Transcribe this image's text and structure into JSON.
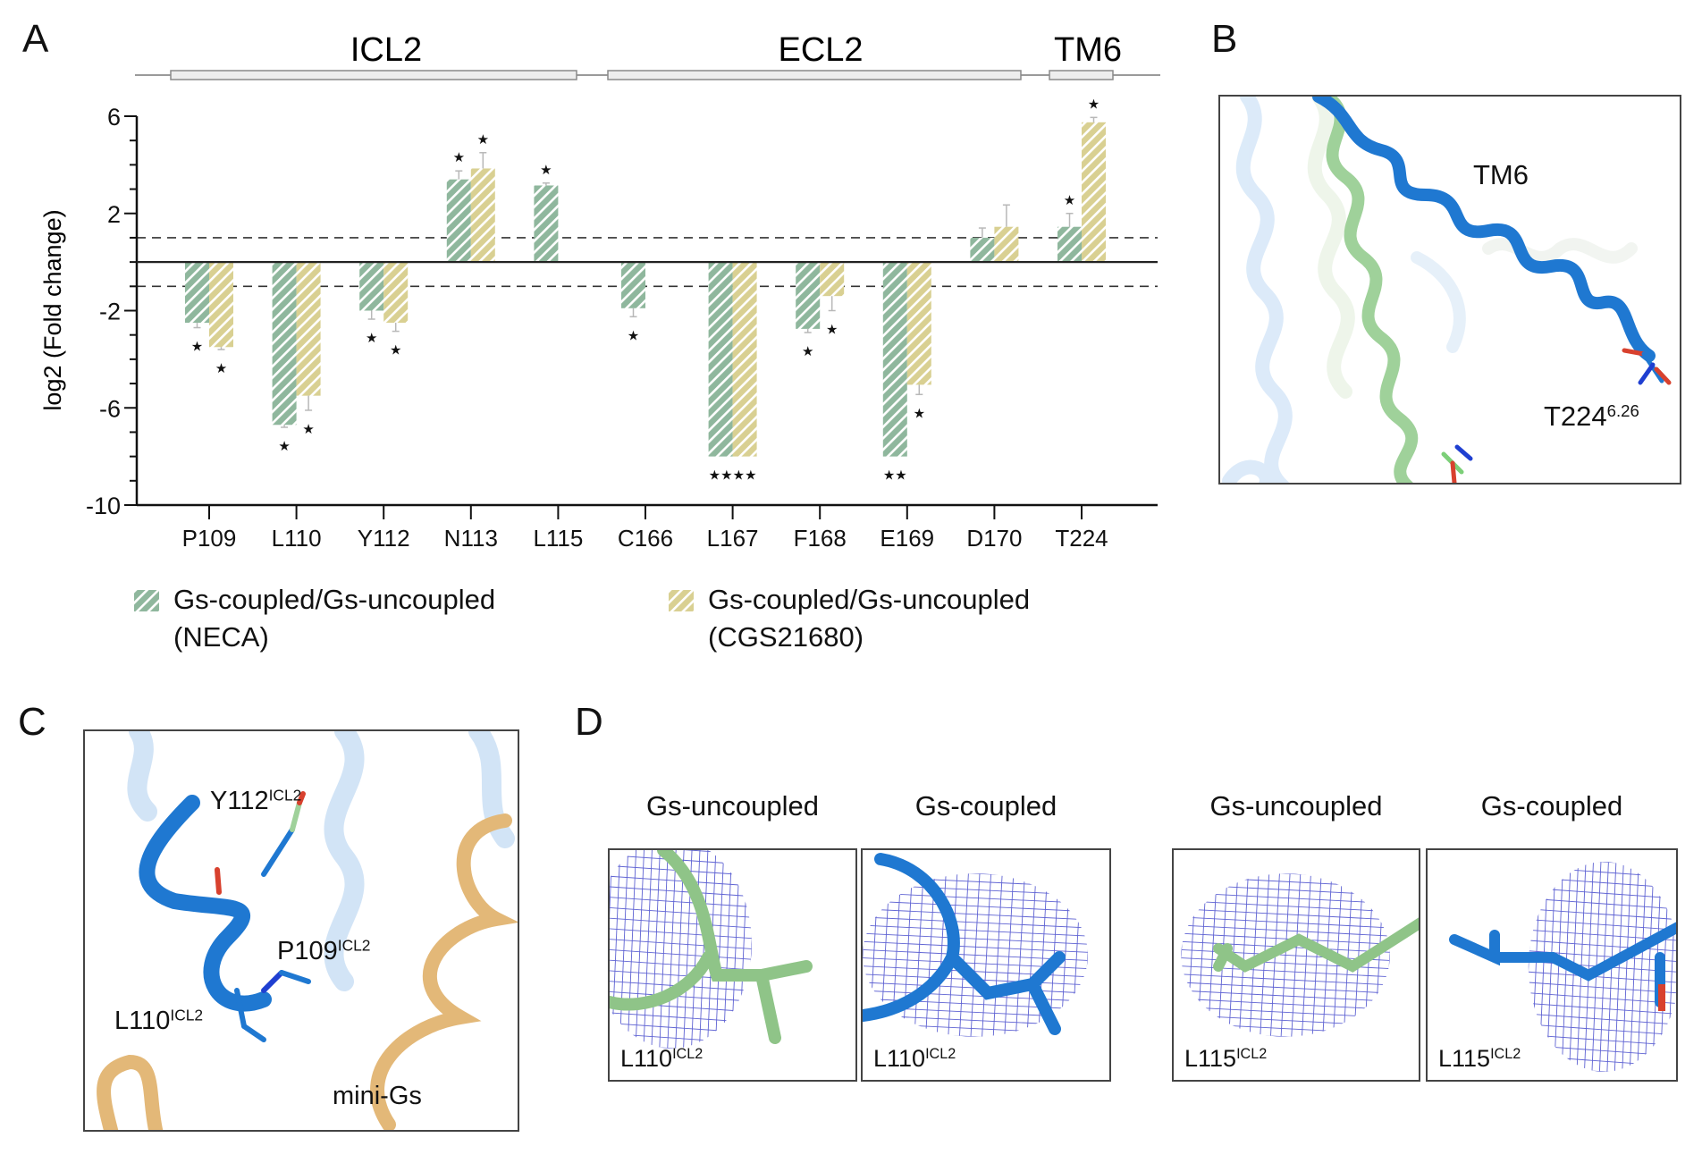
{
  "figure": {
    "panels": {
      "A": "A",
      "B": "B",
      "C": "C",
      "D": "D"
    }
  },
  "regions": [
    {
      "label": "ICL2"
    },
    {
      "label": "ECL2"
    },
    {
      "label": "TM6"
    }
  ],
  "colors": {
    "neca": "#8fb79d",
    "cgs": "#d9d092",
    "axis": "#1a1a1a",
    "helix_blue": "#1f78d1",
    "helix_green": "#9fd19a",
    "mini_gs": "#e3b878",
    "density_mesh": "#2a2fc4"
  },
  "chart_data": {
    "type": "bar",
    "title": "",
    "xlabel": "",
    "ylabel": "log2 (Fold change)",
    "ylim": [
      -10,
      6
    ],
    "yticks": [
      6,
      2,
      -2,
      -6,
      -10
    ],
    "minor_tick_step": 1,
    "threshold_lines": [
      1,
      -1
    ],
    "categories": [
      "P109",
      "L110",
      "Y112",
      "N113",
      "L115",
      "C166",
      "L167",
      "F168",
      "E169",
      "D170",
      "T224"
    ],
    "series": [
      {
        "name": "Gs-coupled/Gs-uncoupled (NECA)",
        "color_key": "neca",
        "values": [
          -2.5,
          -6.7,
          -2.0,
          3.4,
          3.15,
          -1.9,
          -8.0,
          -2.75,
          -8.0,
          1.0,
          1.45
        ],
        "errors": [
          0.2,
          0.1,
          0.35,
          0.35,
          0.1,
          0.35,
          null,
          0.15,
          null,
          0.4,
          0.55
        ],
        "significance": [
          "*",
          "*",
          "*",
          "*",
          "*",
          "*",
          "**",
          "*",
          "**",
          "",
          "*"
        ]
      },
      {
        "name": "Gs-coupled/Gs-uncoupled (CGS21680)",
        "color_key": "cgs",
        "values": [
          -3.5,
          -5.5,
          -2.5,
          3.85,
          null,
          null,
          -8.0,
          -1.4,
          -5.05,
          1.45,
          5.75
        ],
        "errors": [
          0.1,
          0.6,
          0.35,
          0.65,
          null,
          null,
          null,
          0.6,
          0.4,
          0.9,
          0.2
        ],
        "significance": [
          "*",
          "*",
          "*",
          "*",
          "",
          "",
          "**",
          "*",
          "*",
          "",
          "*"
        ]
      }
    ],
    "legend": [
      {
        "line1": "Gs-coupled/Gs-uncoupled",
        "line2": "(NECA)",
        "color_key": "neca"
      },
      {
        "line1": "Gs-coupled/Gs-uncoupled",
        "line2": "(CGS21680)",
        "color_key": "cgs"
      }
    ],
    "legend_position": "bottom"
  },
  "panel_b": {
    "helix_label": "TM6",
    "residue": {
      "name": "T224",
      "sup": "6.26"
    }
  },
  "panel_c": {
    "labels": [
      {
        "name": "Y112",
        "sup": "ICL2"
      },
      {
        "name": "P109",
        "sup": "ICL2"
      },
      {
        "name": "L110",
        "sup": "ICL2"
      },
      {
        "name": "mini-Gs",
        "sup": ""
      }
    ]
  },
  "panel_d": {
    "boxes": [
      {
        "title": "Gs-uncoupled",
        "residue": "L110",
        "sup": "ICL2",
        "state": "uncoupled"
      },
      {
        "title": "Gs-coupled",
        "residue": "L110",
        "sup": "ICL2",
        "state": "coupled"
      },
      {
        "title": "Gs-uncoupled",
        "residue": "L115",
        "sup": "ICL2",
        "state": "uncoupled"
      },
      {
        "title": "Gs-coupled",
        "residue": "L115",
        "sup": "ICL2",
        "state": "coupled"
      }
    ]
  }
}
